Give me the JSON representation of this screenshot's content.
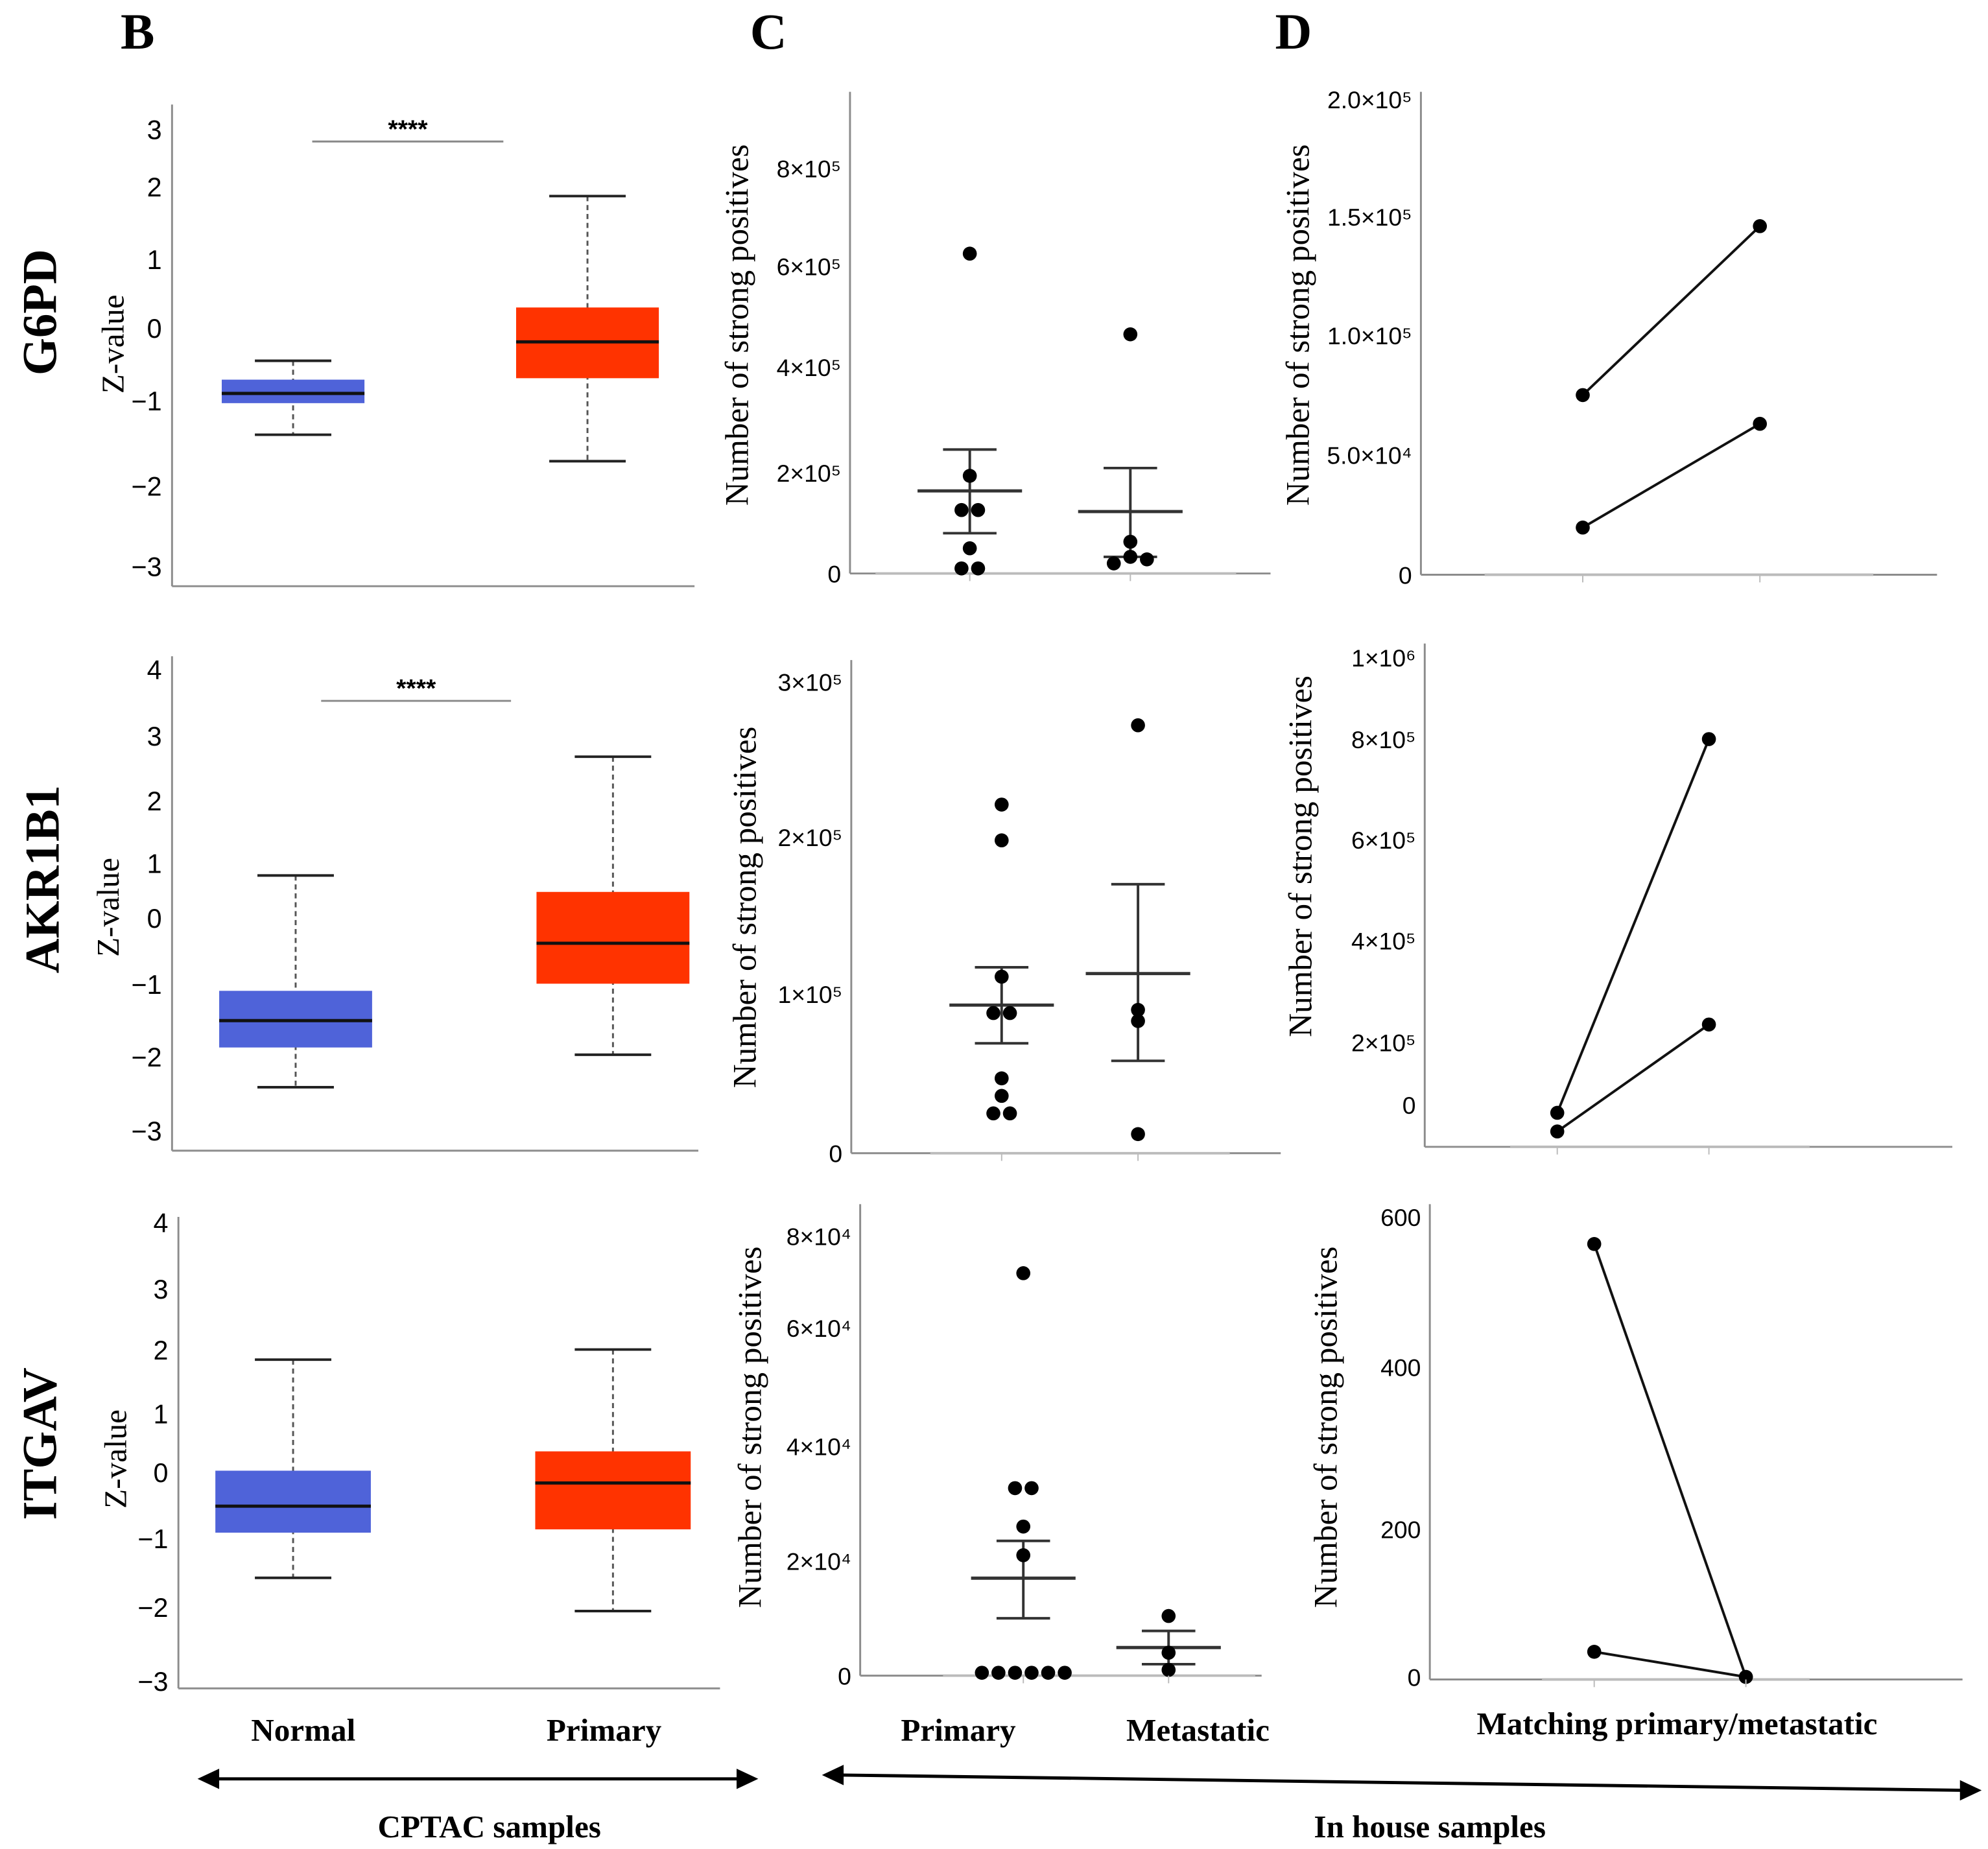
{
  "column_letters": {
    "b": "B",
    "c": "C",
    "d": "D"
  },
  "genes": [
    "G6PD",
    "AKR1B1",
    "ITGAV"
  ],
  "axis_titles": {
    "z": "Z-value",
    "count": "Number of strong positives"
  },
  "x_labels": {
    "cptac": [
      "Normal",
      "Primary"
    ],
    "inhouse": [
      "Primary",
      "Metastatic"
    ],
    "matching": "Matching primary/metastatic"
  },
  "groups": {
    "cptac": "CPTAC samples",
    "inhouse": "In house samples"
  },
  "colors": {
    "normal": "#4F63D9",
    "primary": "#FF3300",
    "marks": "#000000",
    "axis": "#8c8c8c"
  },
  "chart_data": [
    {
      "panel": "B-G6PD",
      "type": "box",
      "ylabel": "Z-value",
      "yticks": [
        "3",
        "2",
        "1",
        "0",
        "−1",
        "−2",
        "−3"
      ],
      "ytick_values": [
        3,
        2,
        1,
        0,
        -1,
        -2,
        -3
      ],
      "significance": "****",
      "boxes": [
        {
          "name": "Normal",
          "whisker_low": -1.39,
          "q1": -1.02,
          "median": -0.89,
          "q3": -0.7,
          "whisker_high": -0.44
        },
        {
          "name": "Primary",
          "whisker_low": -1.7,
          "q1": -0.68,
          "median": -0.18,
          "q3": 0.31,
          "whisker_high": 1.88
        }
      ]
    },
    {
      "panel": "B-AKR1B1",
      "type": "box",
      "ylabel": "Z-value",
      "yticks": [
        "4",
        "3",
        "2",
        "1",
        "0",
        "−1",
        "−2",
        "−3"
      ],
      "ytick_values": [
        4,
        3,
        2,
        1,
        0,
        -1,
        -2,
        -3
      ],
      "significance": "****",
      "boxes": [
        {
          "name": "Normal",
          "whisker_low": -2.4,
          "q1": -1.86,
          "median": -1.49,
          "q3": -1.08,
          "whisker_high": 0.79
        },
        {
          "name": "Primary",
          "whisker_low": -1.96,
          "q1": -0.98,
          "median": -0.37,
          "q3": 0.49,
          "whisker_high": 2.69
        }
      ]
    },
    {
      "panel": "B-ITGAV",
      "type": "box",
      "ylabel": "Z-value",
      "yticks": [
        "4",
        "3",
        "2",
        "1",
        "0",
        "−1",
        "−2",
        "−3"
      ],
      "ytick_values": [
        4,
        3,
        2,
        1,
        0,
        -1,
        -2,
        -3
      ],
      "significance": "",
      "boxes": [
        {
          "name": "Normal",
          "whisker_low": -1.56,
          "q1": -0.9,
          "median": -0.5,
          "q3": 0.04,
          "whisker_high": 1.86
        },
        {
          "name": "Primary",
          "whisker_low": -2.04,
          "q1": -0.85,
          "median": -0.15,
          "q3": 0.37,
          "whisker_high": 2.02
        }
      ]
    },
    {
      "panel": "C-G6PD",
      "type": "scatter",
      "ylabel": "Number of strong positives",
      "yticks": [
        "0",
        "2×10⁵",
        "4×10⁵",
        "6×10⁵",
        "8×10⁵"
      ],
      "ytick_values": [
        0,
        200000,
        400000,
        600000,
        800000
      ],
      "groups": [
        {
          "name": "Primary",
          "points": [
            626000,
            194000,
            126000,
            126000,
            50000,
            10000,
            10000
          ],
          "mean": 164000,
          "sem_high": 244000,
          "sem_low": 80000
        },
        {
          "name": "Metastatic",
          "points": [
            465000,
            63000,
            20000,
            33000,
            28000
          ],
          "mean": 123000,
          "sem_high": 209000,
          "sem_low": 33000
        }
      ]
    },
    {
      "panel": "C-AKR1B1",
      "type": "scatter",
      "ylabel": "Number of strong positives",
      "yticks": [
        "0",
        "1×10⁵",
        "2×10⁵",
        "3×10⁵"
      ],
      "ytick_values": [
        0,
        100000,
        200000,
        300000
      ],
      "groups": [
        {
          "name": "Primary",
          "points": [
            221000,
            198000,
            111000,
            88000,
            88000,
            47000,
            36000,
            25000,
            25000
          ],
          "mean": 93000,
          "sem_high": 117000,
          "sem_low": 69000
        },
        {
          "name": "Metastatic",
          "points": [
            272000,
            90000,
            83000,
            12000
          ],
          "mean": 113000,
          "sem_high": 170000,
          "sem_low": 58000
        }
      ]
    },
    {
      "panel": "C-ITGAV",
      "type": "scatter",
      "ylabel": "Number of strong positives",
      "yticks": [
        "0",
        "2×10⁴",
        "4×10⁴",
        "6×10⁴",
        "8×10⁴"
      ],
      "ytick_values": [
        0,
        20000,
        40000,
        60000,
        80000
      ],
      "groups": [
        {
          "name": "Primary",
          "points": [
            71900,
            32700,
            32700,
            26000,
            21000,
            500,
            500,
            500,
            500,
            500,
            500
          ],
          "mean": 17000,
          "sem_high": 23500,
          "sem_low": 10000
        },
        {
          "name": "Metastatic",
          "points": [
            10400,
            4000,
            1000
          ],
          "mean": 4900,
          "sem_high": 7800,
          "sem_low": 2000
        }
      ]
    },
    {
      "panel": "D-G6PD",
      "type": "paired-line",
      "ylabel": "Number of strong positives",
      "yticks": [
        "0",
        "5.0×10⁴",
        "1.0×10⁵",
        "1.5×10⁵",
        "2.0×10⁵"
      ],
      "ytick_values": [
        0,
        50000,
        100000,
        150000,
        200000
      ],
      "pairs": [
        [
          75000,
          146000
        ],
        [
          19700,
          63000
        ]
      ]
    },
    {
      "panel": "D-AKR1B1",
      "type": "paired-line",
      "ylabel": "Number of strong positives",
      "yticks": [
        "0",
        "2×10⁵",
        "4×10⁵",
        "6×10⁵",
        "8×10⁵",
        "1×10⁶"
      ],
      "ytick_values": [
        0,
        200000,
        400000,
        600000,
        800000,
        1000000
      ],
      "pairs": [
        [
          60000,
          800000
        ],
        [
          23000,
          235000
        ]
      ]
    },
    {
      "panel": "D-ITGAV",
      "type": "paired-line",
      "ylabel": "Number of strong positives",
      "yticks": [
        "0",
        "200",
        "400",
        "600"
      ],
      "ytick_values": [
        0,
        200,
        400,
        600
      ],
      "pairs": [
        [
          564,
          0
        ],
        [
          34,
          0
        ]
      ]
    }
  ]
}
